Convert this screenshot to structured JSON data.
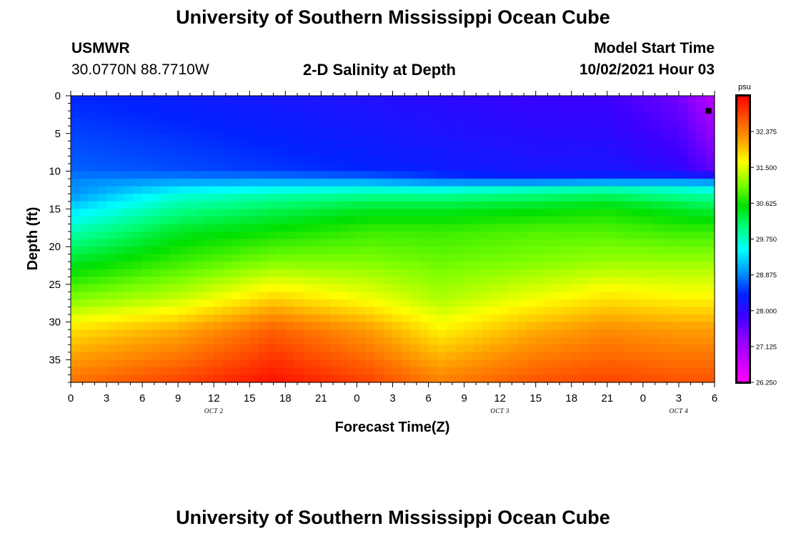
{
  "header": {
    "title_top": "University of Southern Mississippi Ocean Cube",
    "title_bottom": "University of Southern Mississippi Ocean Cube",
    "station_id": "USMWR",
    "station_coords": "30.0770N  88.7710W",
    "plot_title": "2-D Salinity at Depth",
    "model_start_label": "Model Start Time",
    "model_start_value": "10/02/2021 Hour 03"
  },
  "chart_data": {
    "type": "heatmap",
    "title": "2-D Salinity at Depth",
    "xlabel": "Forecast Time(Z)",
    "ylabel": "Depth (ft)",
    "x_hours_from_oct2_00z": [
      0,
      54
    ],
    "ylim": [
      0,
      38
    ],
    "y_inverted": true,
    "x_tick_labels": [
      "0",
      "3",
      "6",
      "9",
      "12",
      "15",
      "18",
      "21",
      "0",
      "3",
      "6",
      "9",
      "12",
      "15",
      "18",
      "21",
      "0",
      "3",
      "6"
    ],
    "y_tick_labels": [
      "0",
      "5",
      "10",
      "15",
      "20",
      "25",
      "30",
      "35"
    ],
    "y_tick_values": [
      0,
      5,
      10,
      15,
      20,
      25,
      30,
      35
    ],
    "date_labels": [
      {
        "label": "OCT 2",
        "hour": 12
      },
      {
        "label": "OCT 3",
        "hour": 36
      },
      {
        "label": "OCT 4",
        "hour": 51
      }
    ],
    "marker": {
      "hour": 53.5,
      "depth_ft": 2
    },
    "colorbar": {
      "units": "psu",
      "min": 26.25,
      "max": 33.25,
      "tick_values": [
        26.25,
        27.125,
        28.0,
        28.875,
        29.75,
        30.625,
        31.5,
        32.375
      ],
      "tick_labels": [
        "26.250",
        "27.125",
        "28.000",
        "28.875",
        "29.750",
        "30.625",
        "31.500",
        "32.375"
      ],
      "colors": [
        "#ff00ff",
        "#c800ff",
        "#8c00ff",
        "#3c00ff",
        "#0024ff",
        "#0096ff",
        "#00ffff",
        "#00ff80",
        "#00e000",
        "#80ff00",
        "#ffff00",
        "#ffa000",
        "#ff5000",
        "#ff0000"
      ]
    },
    "salinity_profiles": {
      "description": "salinity (psu) at depth knots per forecast hour knot; interpolated to render the field",
      "depth_knots": [
        0,
        10,
        11,
        12,
        13,
        15,
        18,
        22,
        27,
        31,
        38
      ],
      "hour_knots": [
        0,
        9,
        17,
        25,
        31,
        39,
        45,
        51,
        54
      ],
      "values": [
        [
          28.4,
          28.7,
          28.85,
          28.9,
          28.9,
          29.3,
          29.8,
          30.4,
          31.1,
          31.8,
          32.5
        ],
        [
          28.3,
          28.6,
          28.9,
          29.2,
          29.6,
          29.95,
          30.4,
          30.8,
          31.4,
          32.1,
          32.8
        ],
        [
          28.2,
          28.5,
          28.9,
          29.3,
          29.8,
          30.2,
          30.6,
          31.1,
          31.9,
          32.6,
          33.15
        ],
        [
          28.1,
          28.4,
          28.8,
          29.4,
          29.9,
          30.4,
          30.8,
          31.1,
          31.6,
          32.2,
          32.8
        ],
        [
          28.0,
          28.3,
          28.6,
          29.3,
          29.9,
          30.4,
          30.8,
          31.0,
          31.3,
          31.7,
          32.4
        ],
        [
          27.9,
          28.2,
          28.4,
          29.5,
          30.0,
          30.5,
          30.9,
          31.1,
          31.6,
          32.1,
          32.7
        ],
        [
          27.85,
          28.2,
          28.5,
          29.6,
          30.1,
          30.6,
          30.9,
          31.2,
          31.8,
          32.3,
          32.8
        ],
        [
          27.5,
          28.0,
          28.6,
          29.5,
          29.9,
          30.4,
          30.8,
          31.2,
          31.7,
          32.2,
          32.7
        ],
        [
          26.9,
          27.6,
          28.6,
          29.4,
          29.8,
          30.3,
          30.8,
          31.2,
          31.7,
          32.2,
          32.7
        ]
      ]
    }
  }
}
